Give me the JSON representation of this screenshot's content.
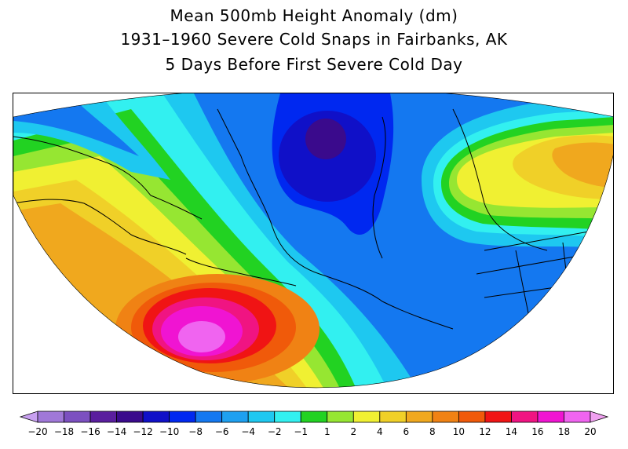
{
  "title": {
    "line1": "Mean 500mb Height Anomaly (dm)",
    "line2": "1931–1960 Severe Cold Snaps in Fairbanks, AK",
    "line3": "5 Days Before First Severe Cold Day"
  },
  "colorbar": {
    "labels": [
      "-20",
      "-18",
      "-16",
      "-14",
      "-12",
      "-10",
      "-8",
      "-6",
      "-4",
      "-2",
      "-1",
      "1",
      "2",
      "4",
      "6",
      "8",
      "10",
      "12",
      "14",
      "16",
      "18",
      "20"
    ],
    "colors": [
      "#c8a0f0",
      "#a078d8",
      "#7c50c0",
      "#5a1e9e",
      "#3a0a8c",
      "#1010c8",
      "#0028f0",
      "#1478f0",
      "#1ea0f0",
      "#1ec8f0",
      "#32f0f0",
      "#22d222",
      "#96e632",
      "#f0f032",
      "#f0d028",
      "#f0a81e",
      "#f08214",
      "#f05a0a",
      "#f01414",
      "#f01482",
      "#f014d2",
      "#f064f0",
      "#f0a0f0"
    ]
  },
  "map": {
    "region": "Alaska / North Pacific / Arctic",
    "min_anomaly": -14,
    "max_anomaly": 18,
    "low_center": "northwest Canada / Beaufort Sea",
    "high_center": "North Pacific south of the Aleutians"
  }
}
